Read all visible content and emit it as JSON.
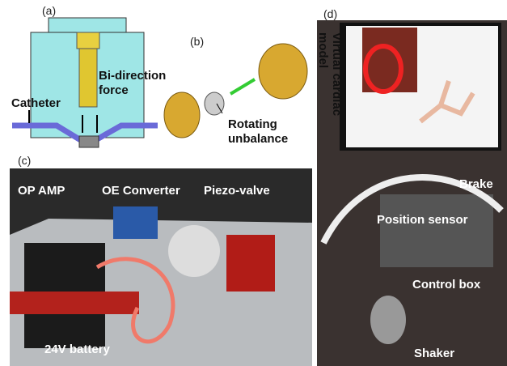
{
  "panels": [
    {
      "label": "(a)",
      "annotations": [
        {
          "lines": [
            "Catheter"
          ]
        },
        {
          "lines": [
            "Bi-direction",
            "force"
          ]
        }
      ]
    },
    {
      "label": "(b)",
      "annotations": [
        {
          "lines": [
            "Rotating",
            "unbalance"
          ]
        }
      ]
    },
    {
      "label": "(c)",
      "annotations": [
        {
          "lines": [
            "OP AMP"
          ]
        },
        {
          "lines": [
            "OE Converter"
          ]
        },
        {
          "lines": [
            "Piezo-valve"
          ]
        },
        {
          "lines": [
            "24V battery"
          ]
        }
      ]
    },
    {
      "label": "(d)",
      "annotations": [
        {
          "lines": [
            "Virtual cardiac",
            "model"
          ]
        },
        {
          "lines": [
            "Brake"
          ]
        },
        {
          "lines": [
            "Position sensor"
          ]
        },
        {
          "lines": [
            "Control box"
          ]
        },
        {
          "lines": [
            "Shaker"
          ]
        }
      ]
    }
  ]
}
